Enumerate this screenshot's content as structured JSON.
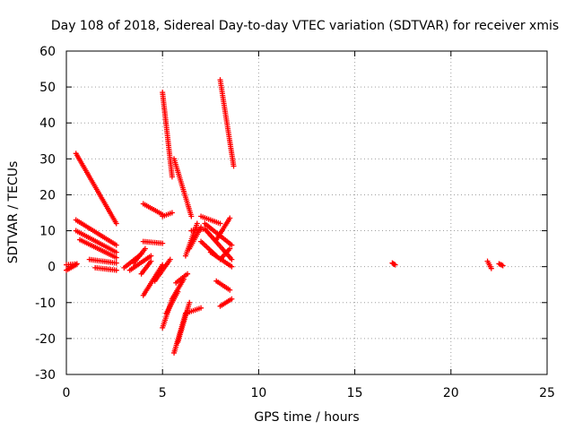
{
  "chart_data": {
    "type": "scatter",
    "title": "Day 108 of 2018, Sidereal Day-to-day VTEC variation (SDTVAR) for receiver xmis",
    "xlabel": "GPS time / hours",
    "ylabel": "SDTVAR / TECUs",
    "xlim": [
      0,
      25
    ],
    "ylim": [
      -30,
      60
    ],
    "xticks": [
      0,
      5,
      10,
      15,
      20,
      25
    ],
    "yticks": [
      -30,
      -20,
      -10,
      0,
      10,
      20,
      30,
      40,
      50,
      60
    ],
    "grid": true,
    "marker": "+",
    "color": "#ff0000",
    "segments": [
      {
        "x": [
          0.0,
          0.5
        ],
        "y": [
          -1.0,
          0.5
        ]
      },
      {
        "x": [
          0.0,
          0.55
        ],
        "y": [
          0.5,
          0.8
        ]
      },
      {
        "x": [
          0.5,
          2.6
        ],
        "y": [
          31.5,
          12.0
        ]
      },
      {
        "x": [
          0.5,
          2.6
        ],
        "y": [
          13.0,
          6.0
        ]
      },
      {
        "x": [
          0.5,
          2.6
        ],
        "y": [
          10.0,
          4.0
        ]
      },
      {
        "x": [
          0.7,
          2.6
        ],
        "y": [
          7.5,
          2.5
        ]
      },
      {
        "x": [
          1.2,
          2.6
        ],
        "y": [
          2.0,
          1.0
        ]
      },
      {
        "x": [
          1.5,
          2.6
        ],
        "y": [
          -0.3,
          -1.0
        ]
      },
      {
        "x": [
          3.0,
          3.9
        ],
        "y": [
          -0.3,
          3.5
        ]
      },
      {
        "x": [
          3.3,
          4.4
        ],
        "y": [
          -1.0,
          3.0
        ]
      },
      {
        "x": [
          3.5,
          4.1
        ],
        "y": [
          1.0,
          5.0
        ]
      },
      {
        "x": [
          3.9,
          4.4
        ],
        "y": [
          -2.0,
          1.5
        ]
      },
      {
        "x": [
          4.0,
          5.0
        ],
        "y": [
          7.0,
          6.5
        ]
      },
      {
        "x": [
          4.0,
          5.0
        ],
        "y": [
          17.5,
          14.5
        ]
      },
      {
        "x": [
          5.0,
          5.5
        ],
        "y": [
          14.0,
          15.0
        ]
      },
      {
        "x": [
          4.0,
          5.0
        ],
        "y": [
          -8.0,
          0.5
        ]
      },
      {
        "x": [
          4.6,
          5.4
        ],
        "y": [
          -4.0,
          2.0
        ]
      },
      {
        "x": [
          5.0,
          5.5
        ],
        "y": [
          48.5,
          25.0
        ]
      },
      {
        "x": [
          5.0,
          5.5
        ],
        "y": [
          -17.0,
          -9.0
        ]
      },
      {
        "x": [
          5.2,
          5.8
        ],
        "y": [
          -13.0,
          -7.0
        ]
      },
      {
        "x": [
          5.5,
          6.1
        ],
        "y": [
          -9.0,
          -3.5
        ]
      },
      {
        "x": [
          5.7,
          6.3
        ],
        "y": [
          -4.5,
          -2.0
        ]
      },
      {
        "x": [
          5.6,
          6.2
        ],
        "y": [
          -24.0,
          -13.0
        ]
      },
      {
        "x": [
          5.8,
          6.4
        ],
        "y": [
          -21.0,
          -10.0
        ]
      },
      {
        "x": [
          6.2,
          7.0
        ],
        "y": [
          -13.0,
          -11.5
        ]
      },
      {
        "x": [
          5.6,
          6.5
        ],
        "y": [
          30.0,
          14.0
        ]
      },
      {
        "x": [
          6.5,
          7.2
        ],
        "y": [
          10.0,
          10.5
        ]
      },
      {
        "x": [
          6.2,
          6.8
        ],
        "y": [
          3.0,
          12.0
        ]
      },
      {
        "x": [
          6.4,
          7.0
        ],
        "y": [
          5.0,
          11.0
        ]
      },
      {
        "x": [
          7.0,
          8.0
        ],
        "y": [
          14.0,
          12.0
        ]
      },
      {
        "x": [
          7.0,
          7.8
        ],
        "y": [
          7.0,
          3.0
        ]
      },
      {
        "x": [
          7.5,
          8.6
        ],
        "y": [
          4.0,
          0.0
        ]
      },
      {
        "x": [
          7.2,
          8.6
        ],
        "y": [
          10.5,
          2.0
        ]
      },
      {
        "x": [
          7.2,
          8.6
        ],
        "y": [
          12.0,
          6.0
        ]
      },
      {
        "x": [
          7.8,
          8.5
        ],
        "y": [
          7.5,
          13.5
        ]
      },
      {
        "x": [
          7.8,
          8.5
        ],
        "y": [
          -4.0,
          -6.5
        ]
      },
      {
        "x": [
          8.0,
          8.6
        ],
        "y": [
          -11.0,
          -9.0
        ]
      },
      {
        "x": [
          8.0,
          8.5
        ],
        "y": [
          2.0,
          5.0
        ]
      },
      {
        "x": [
          8.0,
          8.7
        ],
        "y": [
          52.0,
          28.0
        ]
      },
      {
        "x": [
          16.95,
          17.1
        ],
        "y": [
          1.0,
          0.5
        ]
      },
      {
        "x": [
          21.9,
          22.1
        ],
        "y": [
          1.5,
          -0.5
        ]
      },
      {
        "x": [
          22.5,
          22.7
        ],
        "y": [
          0.8,
          0.3
        ]
      }
    ]
  }
}
